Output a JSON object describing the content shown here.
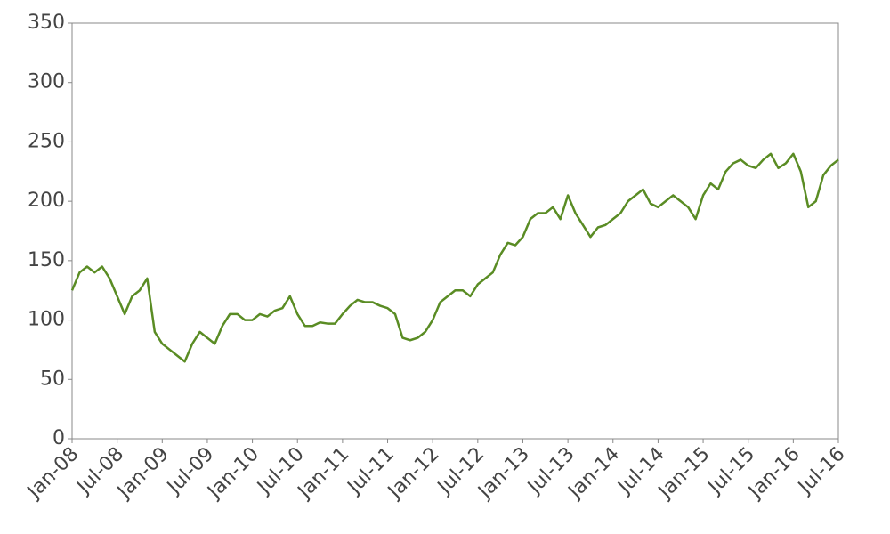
{
  "chart_data": {
    "type": "line",
    "x": [
      "2008-01",
      "2008-02",
      "2008-03",
      "2008-04",
      "2008-05",
      "2008-06",
      "2008-07",
      "2008-08",
      "2008-09",
      "2008-10",
      "2008-11",
      "2008-12",
      "2009-01",
      "2009-02",
      "2009-03",
      "2009-04",
      "2009-05",
      "2009-06",
      "2009-07",
      "2009-08",
      "2009-09",
      "2009-10",
      "2009-11",
      "2009-12",
      "2010-01",
      "2010-02",
      "2010-03",
      "2010-04",
      "2010-05",
      "2010-06",
      "2010-07",
      "2010-08",
      "2010-09",
      "2010-10",
      "2010-11",
      "2010-12",
      "2011-01",
      "2011-02",
      "2011-03",
      "2011-04",
      "2011-05",
      "2011-06",
      "2011-07",
      "2011-08",
      "2011-09",
      "2011-10",
      "2011-11",
      "2011-12",
      "2012-01",
      "2012-02",
      "2012-03",
      "2012-04",
      "2012-05",
      "2012-06",
      "2012-07",
      "2012-08",
      "2012-09",
      "2012-10",
      "2012-11",
      "2012-12",
      "2013-01",
      "2013-02",
      "2013-03",
      "2013-04",
      "2013-05",
      "2013-06",
      "2013-07",
      "2013-08",
      "2013-09",
      "2013-10",
      "2013-11",
      "2013-12",
      "2014-01",
      "2014-02",
      "2014-03",
      "2014-04",
      "2014-05",
      "2014-06",
      "2014-07",
      "2014-08",
      "2014-09",
      "2014-10",
      "2014-11",
      "2014-12",
      "2015-01",
      "2015-02",
      "2015-03",
      "2015-04",
      "2015-05",
      "2015-06",
      "2015-07",
      "2015-08",
      "2015-09",
      "2015-10",
      "2015-11",
      "2015-12",
      "2016-01",
      "2016-02",
      "2016-03",
      "2016-04",
      "2016-05",
      "2016-06",
      "2016-07"
    ],
    "values": [
      125,
      140,
      145,
      140,
      145,
      135,
      120,
      105,
      120,
      125,
      135,
      90,
      80,
      75,
      70,
      65,
      80,
      90,
      85,
      80,
      95,
      105,
      105,
      100,
      100,
      105,
      103,
      108,
      110,
      120,
      105,
      95,
      95,
      98,
      97,
      97,
      105,
      112,
      117,
      115,
      115,
      112,
      110,
      105,
      85,
      83,
      85,
      90,
      100,
      115,
      120,
      125,
      125,
      120,
      130,
      135,
      140,
      155,
      165,
      163,
      170,
      185,
      190,
      190,
      195,
      185,
      205,
      190,
      180,
      170,
      178,
      180,
      185,
      190,
      200,
      205,
      210,
      198,
      195,
      200,
      205,
      200,
      195,
      185,
      205,
      215,
      210,
      225,
      232,
      235,
      230,
      228,
      235,
      240,
      228,
      232,
      240,
      225,
      195,
      200,
      222,
      230,
      235
    ],
    "color": "#5a8c24",
    "xlim": [
      "2008-01",
      "2016-07"
    ],
    "xticks": [
      {
        "value": "2008-01",
        "label": "Jan-08"
      },
      {
        "value": "2008-07",
        "label": "Jul-08"
      },
      {
        "value": "2009-01",
        "label": "Jan-09"
      },
      {
        "value": "2009-07",
        "label": "Jul-09"
      },
      {
        "value": "2010-01",
        "label": "Jan-10"
      },
      {
        "value": "2010-07",
        "label": "Jul-10"
      },
      {
        "value": "2011-01",
        "label": "Jan-11"
      },
      {
        "value": "2011-07",
        "label": "Jul-11"
      },
      {
        "value": "2012-01",
        "label": "Jan-12"
      },
      {
        "value": "2012-07",
        "label": "Jul-12"
      },
      {
        "value": "2013-01",
        "label": "Jan-13"
      },
      {
        "value": "2013-07",
        "label": "Jul-13"
      },
      {
        "value": "2014-01",
        "label": "Jan-14"
      },
      {
        "value": "2014-07",
        "label": "Jul-14"
      },
      {
        "value": "2015-01",
        "label": "Jan-15"
      },
      {
        "value": "2015-07",
        "label": "Jul-15"
      },
      {
        "value": "2016-01",
        "label": "Jan-16"
      },
      {
        "value": "2016-07",
        "label": "Jul-16"
      }
    ],
    "ylim": [
      0,
      350
    ],
    "yticks": [
      0,
      50,
      100,
      150,
      200,
      250,
      300,
      350
    ],
    "grid": false
  }
}
